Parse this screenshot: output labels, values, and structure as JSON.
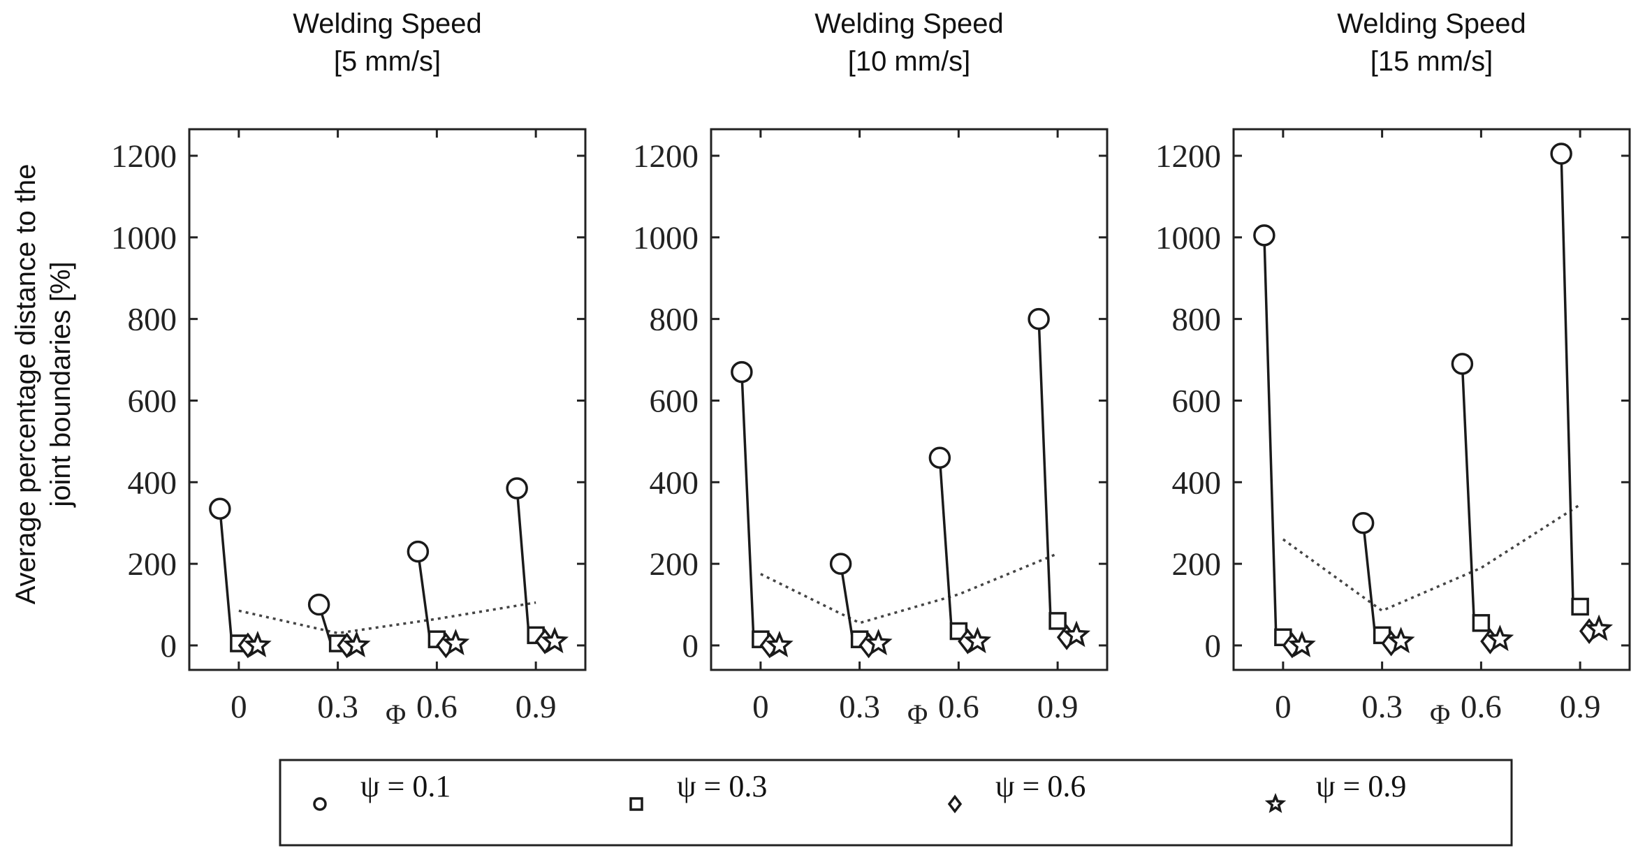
{
  "chart_data": {
    "type": "scatter",
    "ylabel_lines": [
      "Average percentage distance to the",
      "joint boundaries [%]"
    ],
    "xlabel": "Φ",
    "x_ticks": [
      "0",
      "0.3",
      "0.6",
      "0.9"
    ],
    "x_values": [
      0,
      0.3,
      0.6,
      0.9
    ],
    "y_ticks": [
      "0",
      "200",
      "400",
      "600",
      "800",
      "1000",
      "1200"
    ],
    "ylim": [
      -60,
      1265
    ],
    "xlim": [
      -0.15,
      1.05
    ],
    "legend": {
      "position": "bottom-center",
      "entries": [
        {
          "psi": "0.1",
          "label": "ψ = 0.1",
          "marker": "circle"
        },
        {
          "psi": "0.3",
          "label": "ψ = 0.3",
          "marker": "square"
        },
        {
          "psi": "0.6",
          "label": "ψ = 0.6",
          "marker": "diamond"
        },
        {
          "psi": "0.9",
          "label": "ψ = 0.9",
          "marker": "star"
        }
      ]
    },
    "panels": [
      {
        "title_line1": "Welding Speed",
        "title_line2": "[5 mm/s]",
        "series": [
          {
            "name": "ψ = 0.1",
            "values": [
              335,
              100,
              230,
              385
            ]
          },
          {
            "name": "ψ = 0.3",
            "values": [
              5,
              5,
              15,
              25
            ]
          },
          {
            "name": "ψ = 0.6",
            "values": [
              0,
              0,
              0,
              10
            ]
          },
          {
            "name": "ψ = 0.9",
            "values": [
              0,
              0,
              5,
              10
            ]
          }
        ],
        "trend": [
          85,
          30,
          65,
          105
        ]
      },
      {
        "title_line1": "Welding Speed",
        "title_line2": "[10 mm/s]",
        "series": [
          {
            "name": "ψ = 0.1",
            "values": [
              670,
              200,
              460,
              800
            ]
          },
          {
            "name": "ψ = 0.3",
            "values": [
              15,
              15,
              35,
              60
            ]
          },
          {
            "name": "ψ = 0.6",
            "values": [
              0,
              0,
              10,
              20
            ]
          },
          {
            "name": "ψ = 0.9",
            "values": [
              0,
              5,
              10,
              25
            ]
          }
        ],
        "trend": [
          175,
          55,
          125,
          225
        ]
      },
      {
        "title_line1": "Welding Speed",
        "title_line2": "[15 mm/s]",
        "series": [
          {
            "name": "ψ = 0.1",
            "values": [
              1005,
              300,
              690,
              1205
            ]
          },
          {
            "name": "ψ = 0.3",
            "values": [
              20,
              25,
              55,
              95
            ]
          },
          {
            "name": "ψ = 0.6",
            "values": [
              0,
              5,
              10,
              35
            ]
          },
          {
            "name": "ψ = 0.9",
            "values": [
              0,
              10,
              15,
              40
            ]
          }
        ],
        "trend": [
          260,
          85,
          190,
          345
        ]
      }
    ]
  }
}
